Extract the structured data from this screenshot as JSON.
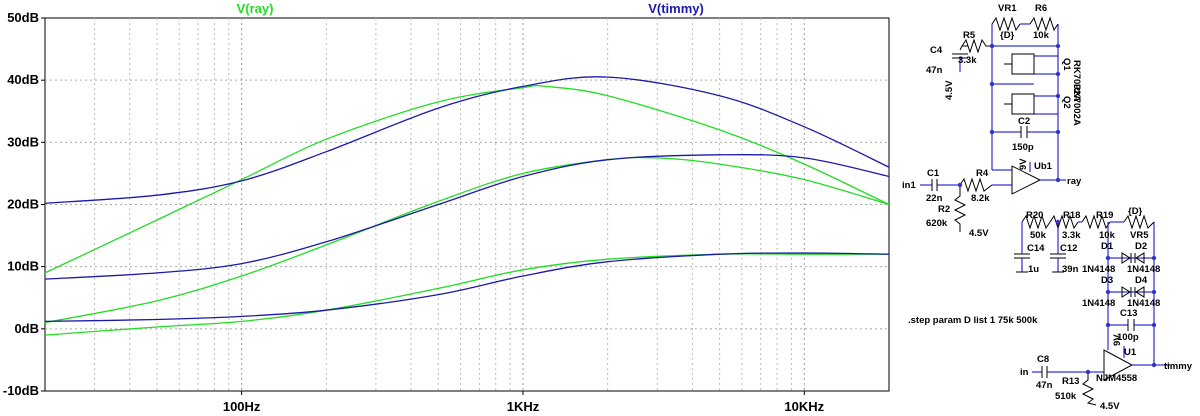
{
  "chart_data": {
    "type": "line",
    "x_scale": "log",
    "xlim": [
      20,
      20000
    ],
    "ylim": [
      -10,
      50
    ],
    "grid": true,
    "y_ticks": [
      "50dB",
      "40dB",
      "30dB",
      "20dB",
      "10dB",
      "0dB",
      "-10dB"
    ],
    "y_tick_values": [
      50,
      40,
      30,
      20,
      10,
      0,
      -10
    ],
    "x_ticks": [
      "100Hz",
      "1KHz",
      "10KHz"
    ],
    "x_tick_values": [
      100,
      1000,
      10000
    ],
    "legend": [
      "V(ray)",
      "V(timmy)"
    ],
    "series": [
      {
        "name": "V(ray)",
        "color": "#22dd22",
        "x": [
          20,
          50,
          100,
          200,
          500,
          1000,
          1200,
          2000,
          5000,
          10000,
          20000
        ],
        "y": [
          9,
          17.5,
          24,
          30.5,
          36.5,
          38.8,
          39,
          37.5,
          32,
          26.5,
          20
        ]
      },
      {
        "name": "V(ray)",
        "color": "#22dd22",
        "x": [
          20,
          50,
          100,
          200,
          500,
          1000,
          2000,
          3000,
          5000,
          10000,
          20000
        ],
        "y": [
          1,
          4.5,
          8.5,
          13.5,
          20.5,
          25,
          27.2,
          27.5,
          26.5,
          24,
          20
        ]
      },
      {
        "name": "V(ray)",
        "color": "#22dd22",
        "x": [
          20,
          50,
          100,
          200,
          500,
          1000,
          2000,
          5000,
          10000,
          20000
        ],
        "y": [
          -1,
          0.3,
          1.2,
          3,
          6.5,
          9.5,
          11.2,
          12,
          12,
          12
        ]
      },
      {
        "name": "V(timmy)",
        "color": "#1a1aaa",
        "x": [
          20,
          50,
          100,
          200,
          500,
          1000,
          2000,
          5000,
          10000,
          20000
        ],
        "y": [
          20.2,
          21.5,
          23.8,
          28.5,
          35.5,
          39,
          40.5,
          37.5,
          32.5,
          26
        ]
      },
      {
        "name": "V(timmy)",
        "color": "#1a1aaa",
        "x": [
          20,
          50,
          100,
          200,
          500,
          1000,
          2000,
          5000,
          10000,
          20000
        ],
        "y": [
          8,
          9,
          10.5,
          14,
          20,
          24.5,
          27.2,
          28,
          27.5,
          24.5
        ]
      },
      {
        "name": "V(timmy)",
        "color": "#1a1aaa",
        "x": [
          20,
          50,
          100,
          200,
          500,
          1000,
          2000,
          5000,
          10000,
          20000
        ],
        "y": [
          1.2,
          1.5,
          2,
          3,
          5.5,
          8.5,
          10.8,
          12,
          12.2,
          12
        ]
      }
    ]
  },
  "schematic": {
    "directive": ".step param D list 1 75k 500k",
    "labels": {
      "vr1": "VR1",
      "r6": "R6",
      "d1p": "{D}",
      "r6v": "10k",
      "r5": "R5",
      "r5v": "3.3k",
      "c4": "C4",
      "c4v": "47n",
      "v45a": "4.5V",
      "q1": "Q1",
      "q1m": "RK7002A",
      "q2": "Q2",
      "q2m": "RK7002A",
      "c2": "C2",
      "c2v": "150p",
      "ub1": "Ub1",
      "ray": "ray",
      "pwr1": "9V",
      "c1": "C1",
      "c1v": "22n",
      "in1": "in1",
      "r4": "R4",
      "r4v": "8.2k",
      "r2": "R2",
      "r2v": "620k",
      "v45b": "4.5V",
      "r20": "R20",
      "r20v": "50k",
      "r18": "R18",
      "r18v": "3.3k",
      "r19": "R19",
      "r19v": "10k",
      "d2p": "{D}",
      "vr5": "VR5",
      "c14": "C14",
      "c14v": "1u",
      "c12": "C12",
      "c12v": "39n",
      "d1": "D1",
      "d1m": "1N4148",
      "d2": "D2",
      "d2m": "1N4148",
      "d3": "D3",
      "d3m": "1N4148",
      "d4": "D4",
      "d4m": "1N4148",
      "c13": "C13",
      "c13v": "100p",
      "u1": "U1",
      "u1m": "NJM4558",
      "pwr2": "9V",
      "timmy": "timmy",
      "in": "in",
      "c8": "C8",
      "c8v": "47n",
      "r13": "R13",
      "r13v": "510k",
      "v45c": "4.5V"
    }
  }
}
